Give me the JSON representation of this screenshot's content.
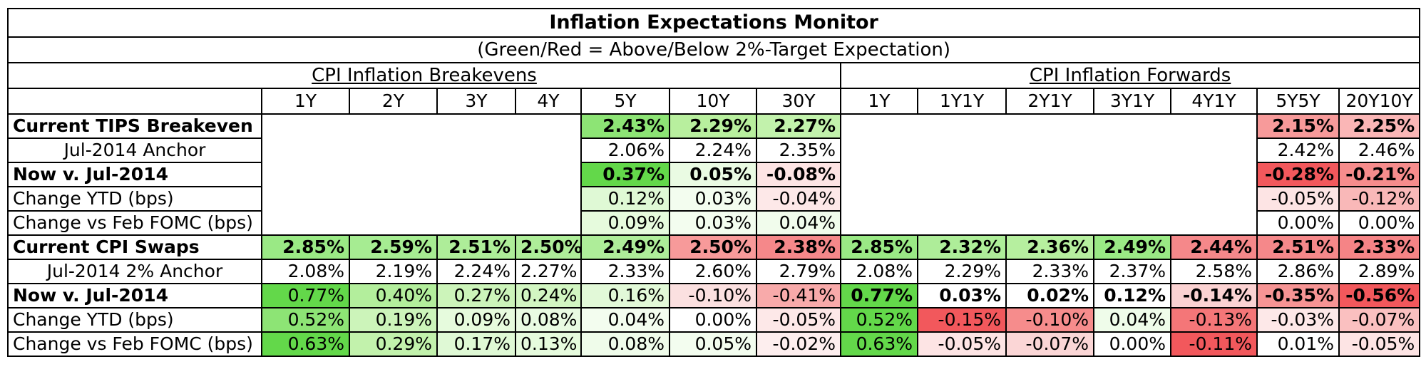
{
  "title": "Inflation Expectations Monitor",
  "subtitle": "(Green/Red = Above/Below 2%-Target Expectation)",
  "groups": {
    "breakevens": "CPI Inflation Breakevens",
    "forwards": "CPI Inflation Forwards"
  },
  "tenors": [
    "1Y",
    "2Y",
    "3Y",
    "4Y",
    "5Y",
    "10Y",
    "30Y",
    "1Y",
    "1Y1Y",
    "2Y1Y",
    "3Y1Y",
    "4Y1Y",
    "5Y5Y",
    "20Y10Y"
  ],
  "colors": {
    "green_strong": "#63d84a",
    "green_mid": "#a6ec92",
    "green_light": "#d7f8cc",
    "green_faint": "#effcea",
    "red_strong": "#f2585c",
    "red_mid": "#f79a9a",
    "red_light": "#fac8c8",
    "red_faint": "#fde8e8"
  },
  "rows": [
    {
      "label": "Current TIPS Breakeven",
      "style": "bold",
      "cells": [
        null,
        null,
        null,
        null,
        {
          "v": "2.43%",
          "bg": "#8de475",
          "b": true
        },
        {
          "v": "2.29%",
          "bg": "#b8ef9e",
          "b": true
        },
        {
          "v": "2.27%",
          "bg": "#c2f2ac",
          "b": true
        },
        null,
        null,
        null,
        null,
        null,
        {
          "v": "2.15%",
          "bg": "#f79a9a",
          "b": true
        },
        {
          "v": "2.25%",
          "bg": "#fab6b6",
          "b": true
        }
      ]
    },
    {
      "label": "Jul-2014 Anchor",
      "style": "indent",
      "cells": [
        null,
        null,
        null,
        null,
        {
          "v": "2.06%"
        },
        {
          "v": "2.24%"
        },
        {
          "v": "2.35%"
        },
        null,
        null,
        null,
        null,
        null,
        {
          "v": "2.42%"
        },
        {
          "v": "2.46%"
        }
      ]
    },
    {
      "label": "Now v. Jul-2014",
      "style": "bold",
      "cells": [
        null,
        null,
        null,
        null,
        {
          "v": "0.37%",
          "bg": "#63d84a",
          "b": true
        },
        {
          "v": "0.05%",
          "bg": "#eafbe3",
          "b": true
        },
        {
          "v": "-0.08%",
          "bg": "#fde4e4",
          "b": true
        },
        null,
        null,
        null,
        null,
        null,
        {
          "v": "-0.28%",
          "bg": "#f2585c",
          "b": true
        },
        {
          "v": "-0.21%",
          "bg": "#f68c8c",
          "b": true
        }
      ]
    },
    {
      "label": "Change YTD (bps)",
      "style": "plain",
      "cells": [
        null,
        null,
        null,
        null,
        {
          "v": "0.12%",
          "bg": "#dff9d5"
        },
        {
          "v": "0.03%",
          "bg": "#f3fdef"
        },
        {
          "v": "-0.04%",
          "bg": "#fde8e8"
        },
        null,
        null,
        null,
        null,
        null,
        {
          "v": "-0.05%",
          "bg": "#fde4e4"
        },
        {
          "v": "-0.12%",
          "bg": "#f9b8b8"
        }
      ]
    },
    {
      "label": "Change vs Feb FOMC (bps)",
      "style": "plain",
      "cells": [
        null,
        null,
        null,
        null,
        {
          "v": "0.09%",
          "bg": "#e6fbdd"
        },
        {
          "v": "0.03%",
          "bg": "#f3fdef"
        },
        {
          "v": "0.04%",
          "bg": "#f1fcec"
        },
        null,
        null,
        null,
        null,
        null,
        {
          "v": "0.00%"
        },
        {
          "v": "0.00%"
        }
      ]
    },
    {
      "label": "Current CPI Swaps",
      "style": "bold",
      "cells": [
        {
          "v": "2.85%",
          "bg": "#9ae985",
          "b": true
        },
        {
          "v": "2.59%",
          "bg": "#a6ec92",
          "b": true
        },
        {
          "v": "2.51%",
          "bg": "#aeed99",
          "b": true
        },
        {
          "v": "2.50%",
          "bg": "#aeed99",
          "b": true
        },
        {
          "v": "2.49%",
          "bg": "#aeed99",
          "b": true
        },
        {
          "v": "2.50%",
          "bg": "#f79a9a",
          "b": true
        },
        {
          "v": "2.38%",
          "bg": "#f5888a",
          "b": true
        },
        {
          "v": "2.85%",
          "bg": "#9ae985",
          "b": true
        },
        {
          "v": "2.32%",
          "bg": "#aeed99",
          "b": true
        },
        {
          "v": "2.36%",
          "bg": "#b6ef9f",
          "b": true
        },
        {
          "v": "2.49%",
          "bg": "#9ae985",
          "b": true
        },
        {
          "v": "2.44%",
          "bg": "#f5888a",
          "b": true
        },
        {
          "v": "2.51%",
          "bg": "#f5888a",
          "b": true
        },
        {
          "v": "2.33%",
          "bg": "#f58486",
          "b": true
        }
      ]
    },
    {
      "label": "Jul-2014 2% Anchor",
      "style": "indent",
      "cells": [
        {
          "v": "2.08%"
        },
        {
          "v": "2.19%"
        },
        {
          "v": "2.24%"
        },
        {
          "v": "2.27%"
        },
        {
          "v": "2.33%"
        },
        {
          "v": "2.60%"
        },
        {
          "v": "2.79%"
        },
        {
          "v": "2.08%"
        },
        {
          "v": "2.29%"
        },
        {
          "v": "2.33%"
        },
        {
          "v": "2.37%"
        },
        {
          "v": "2.58%"
        },
        {
          "v": "2.86%"
        },
        {
          "v": "2.89%"
        }
      ]
    },
    {
      "label": "Now v. Jul-2014",
      "style": "bold",
      "cells": [
        {
          "v": "0.77%",
          "bg": "#63d84a"
        },
        {
          "v": "0.40%",
          "bg": "#b3ee9c"
        },
        {
          "v": "0.27%",
          "bg": "#ccf4ba"
        },
        {
          "v": "0.24%",
          "bg": "#d2f6c2"
        },
        {
          "v": "0.16%",
          "bg": "#e2f9d8"
        },
        {
          "v": "-0.10%",
          "bg": "#fbe0e0"
        },
        {
          "v": "-0.41%",
          "bg": "#f8aaaa"
        },
        {
          "v": "0.77%",
          "bg": "#63d84a",
          "b": true
        },
        {
          "v": "0.03%",
          "b": true
        },
        {
          "v": "0.02%",
          "b": true
        },
        {
          "v": "0.12%",
          "b": true
        },
        {
          "v": "-0.14%",
          "bg": "#fbd2d2",
          "b": true
        },
        {
          "v": "-0.35%",
          "bg": "#f69494",
          "b": true
        },
        {
          "v": "-0.56%",
          "bg": "#f2585c",
          "b": true
        }
      ]
    },
    {
      "label": "Change YTD (bps)",
      "style": "plain",
      "cells": [
        {
          "v": "0.52%",
          "bg": "#8de475"
        },
        {
          "v": "0.19%",
          "bg": "#ccf4ba"
        },
        {
          "v": "0.09%",
          "bg": "#e6fbdd"
        },
        {
          "v": "0.08%",
          "bg": "#e9fbe2"
        },
        {
          "v": "0.04%",
          "bg": "#f3fdef"
        },
        {
          "v": "0.00%"
        },
        {
          "v": "-0.05%",
          "bg": "#fde8e8"
        },
        {
          "v": "0.52%",
          "bg": "#63d84a"
        },
        {
          "v": "-0.15%",
          "bg": "#f2585c"
        },
        {
          "v": "-0.10%",
          "bg": "#f68c8c"
        },
        {
          "v": "0.04%",
          "bg": "#effcea"
        },
        {
          "v": "-0.13%",
          "bg": "#f47678"
        },
        {
          "v": "-0.03%",
          "bg": "#fde8e8"
        },
        {
          "v": "-0.07%",
          "bg": "#fac0c0"
        }
      ]
    },
    {
      "label": "Change vs Feb FOMC (bps)",
      "style": "plain",
      "cells": [
        {
          "v": "0.63%",
          "bg": "#63d84a"
        },
        {
          "v": "0.29%",
          "bg": "#c2f2ac"
        },
        {
          "v": "0.17%",
          "bg": "#dff9d5"
        },
        {
          "v": "0.13%",
          "bg": "#e6fbdd"
        },
        {
          "v": "0.08%",
          "bg": "#effcea"
        },
        {
          "v": "0.05%",
          "bg": "#f3fdef"
        },
        {
          "v": "-0.02%",
          "bg": "#fdeeee"
        },
        {
          "v": "0.63%",
          "bg": "#63d84a"
        },
        {
          "v": "-0.05%",
          "bg": "#fde4e4"
        },
        {
          "v": "-0.07%",
          "bg": "#fbd6d6"
        },
        {
          "v": "0.00%"
        },
        {
          "v": "-0.11%",
          "bg": "#f2585c"
        },
        {
          "v": "0.01%"
        },
        {
          "v": "-0.05%",
          "bg": "#fde4e4"
        }
      ]
    }
  ]
}
